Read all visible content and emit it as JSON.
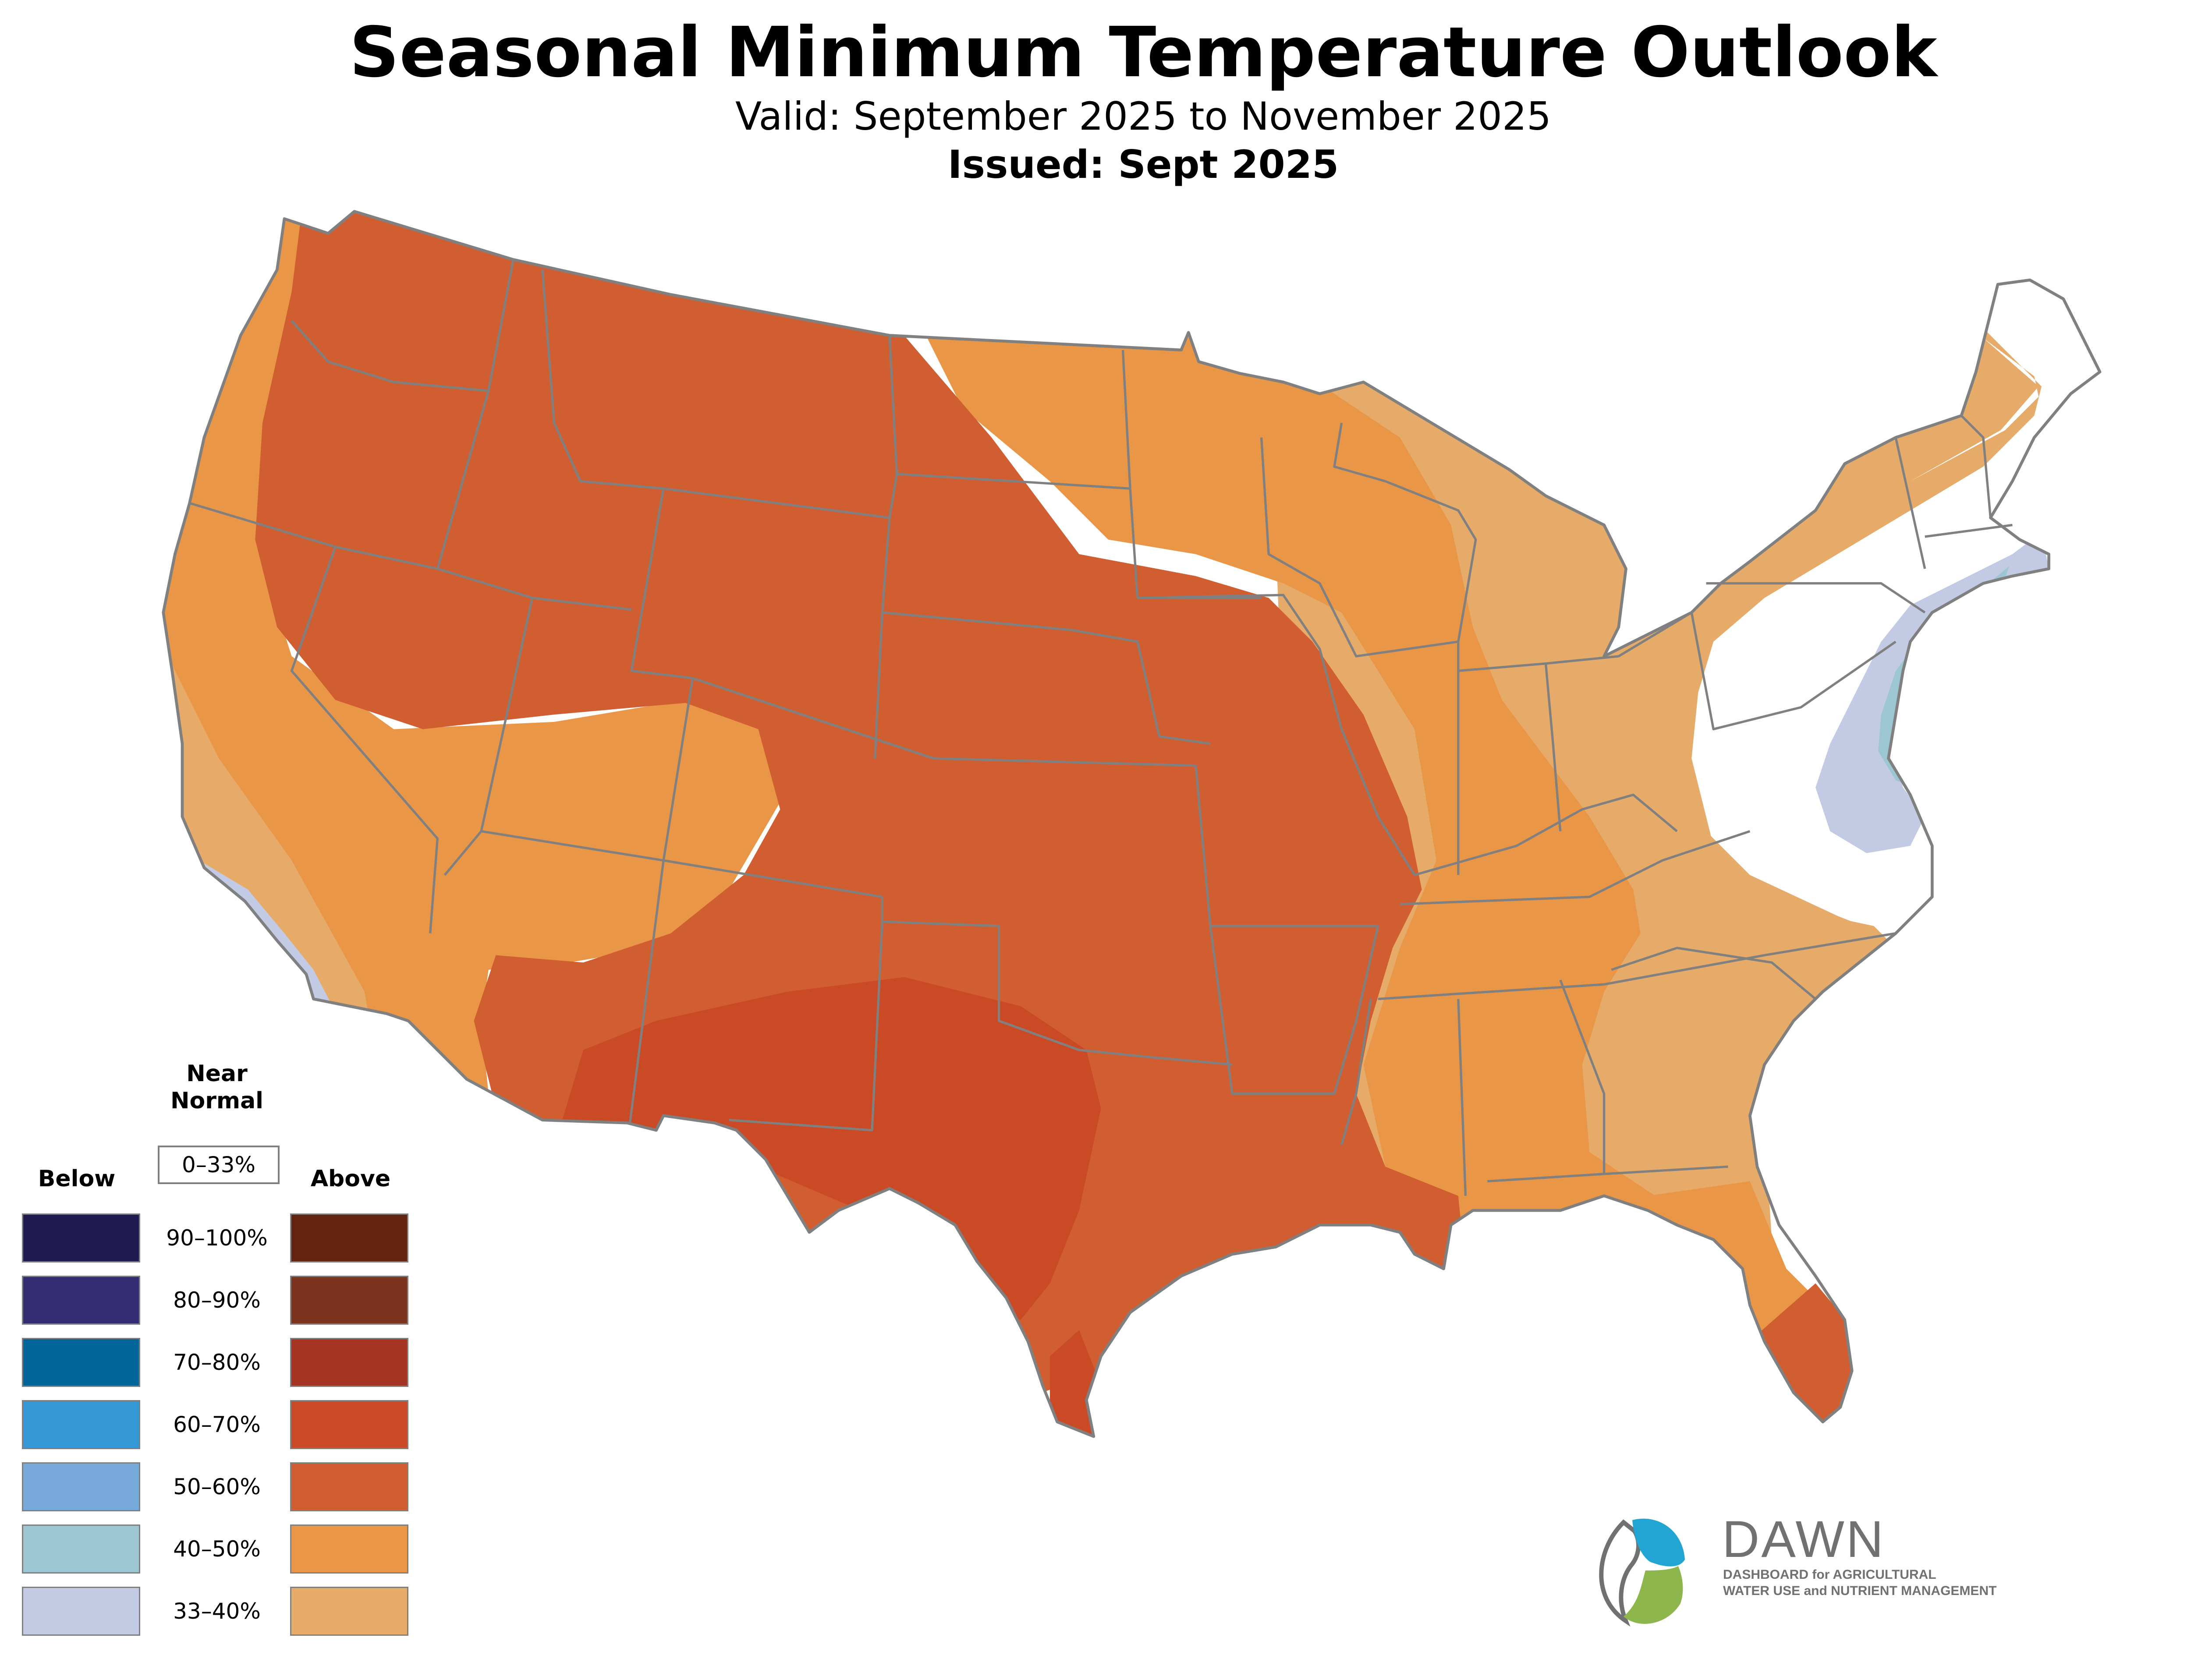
{
  "header": {
    "title": "Seasonal Minimum Temperature Outlook",
    "valid": "Valid: September 2025 to November 2025",
    "issued": "Issued: Sept 2025"
  },
  "map": {
    "region": "Contiguous United States",
    "variable": "Minimum temperature probability outlook",
    "background_color": "#ffffff",
    "border_color": "#808080",
    "regions": [
      {
        "name": "Northern Rockies / Great Plains core",
        "category": "Above",
        "probability": "50–60%",
        "color": "#D15E31"
      },
      {
        "name": "Southern Plains / Texas core",
        "category": "Above",
        "probability": "60–70%",
        "color": "#CA4A26"
      },
      {
        "name": "West coast, Great Basin, Upper Midwest, Mid-South, Florida peninsula north",
        "category": "Above",
        "probability": "40–50%",
        "color": "#EA9647"
      },
      {
        "name": "Great Lakes, Ohio Valley, Southeast, Northern New England band, coastal California",
        "category": "Above",
        "probability": "33–40%",
        "color": "#E6AB68"
      },
      {
        "name": "Southern Florida",
        "category": "Above",
        "probability": "50–60%",
        "color": "#D15E31"
      },
      {
        "name": "Mid-Atlantic coast / Southern California coast",
        "category": "Below",
        "probability": "33–40%",
        "color": "#C3CBE4"
      },
      {
        "name": "New Jersey / Delmarva / Long Island",
        "category": "Below",
        "probability": "40–50%",
        "color": "#9CC6D2"
      },
      {
        "name": "Pennsylvania, New York, interior New England, Virginia",
        "category": "Near Normal",
        "probability": "0–33%",
        "color": "#ffffff"
      }
    ]
  },
  "legend": {
    "near_normal_heading": "Near\nNormal",
    "near_normal_line1": "Near",
    "near_normal_line2": "Normal",
    "near_normal_range": "0–33%",
    "below_heading": "Below",
    "above_heading": "Above",
    "rows": [
      {
        "label": "90–100%",
        "below_color": "#1F1A4F",
        "above_color": "#632310"
      },
      {
        "label": "80–90%",
        "below_color": "#332C73",
        "above_color": "#7D341E"
      },
      {
        "label": "70–80%",
        "below_color": "#02659A",
        "above_color": "#A53423"
      },
      {
        "label": "60–70%",
        "below_color": "#3498D4",
        "above_color": "#CA4A26"
      },
      {
        "label": "50–60%",
        "below_color": "#78A9DB",
        "above_color": "#D15E31"
      },
      {
        "label": "40–50%",
        "below_color": "#9CC6D2",
        "above_color": "#EA9647"
      },
      {
        "label": "33–40%",
        "below_color": "#C3CBE4",
        "above_color": "#E6AB68"
      }
    ]
  },
  "logo": {
    "name": "DAWN",
    "subtitle_line1": "DASHBOARD for AGRICULTURAL",
    "subtitle_line2": "WATER USE and NUTRIENT MANAGEMENT",
    "colors": {
      "blue": "#22A5D3",
      "green": "#8DB64C",
      "gray": "#707271"
    }
  }
}
